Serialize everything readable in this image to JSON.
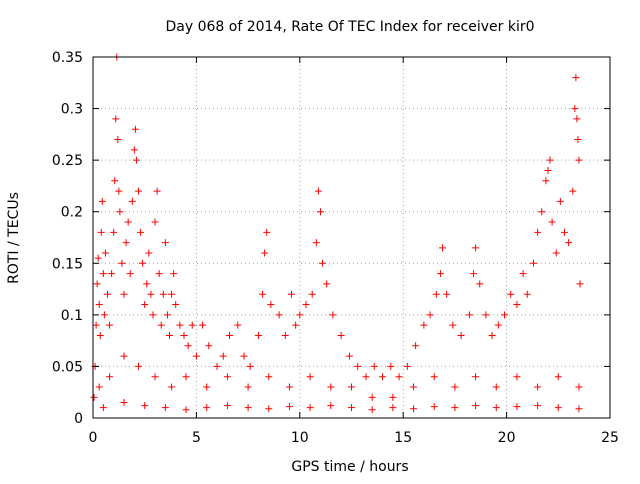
{
  "chart_data": {
    "type": "scatter",
    "title": "Day 068 of 2014, Rate Of TEC Index for receiver kir0",
    "xlabel": "GPS time / hours",
    "ylabel": "ROTI / TECUs",
    "xlim": [
      0,
      25
    ],
    "ylim": [
      0,
      0.35
    ],
    "x_ticks": [
      0,
      5,
      10,
      15,
      20,
      25
    ],
    "y_ticks": [
      0,
      0.05,
      0.1,
      0.15,
      0.2,
      0.25,
      0.3,
      0.35
    ],
    "x_tick_labels": [
      "0",
      "5",
      "10",
      "15",
      "20",
      "25"
    ],
    "y_tick_labels": [
      "0",
      "0.05",
      "0.1",
      "0.15",
      "0.2",
      "0.25",
      "0.3",
      "0.35"
    ],
    "grid": true,
    "legend": "none",
    "marker": "+",
    "color": "#ff0000",
    "series": [
      {
        "points": [
          [
            0.05,
            0.02
          ],
          [
            0.1,
            0.05
          ],
          [
            0.15,
            0.09
          ],
          [
            0.2,
            0.13
          ],
          [
            0.25,
            0.155
          ],
          [
            0.3,
            0.11
          ],
          [
            0.35,
            0.08
          ],
          [
            0.4,
            0.18
          ],
          [
            0.45,
            0.21
          ],
          [
            0.5,
            0.14
          ],
          [
            0.55,
            0.1
          ],
          [
            0.6,
            0.16
          ],
          [
            0.7,
            0.12
          ],
          [
            0.8,
            0.09
          ],
          [
            0.9,
            0.14
          ],
          [
            1.0,
            0.18
          ],
          [
            1.05,
            0.23
          ],
          [
            1.1,
            0.29
          ],
          [
            1.15,
            0.35
          ],
          [
            1.2,
            0.27
          ],
          [
            1.25,
            0.22
          ],
          [
            1.3,
            0.2
          ],
          [
            1.4,
            0.15
          ],
          [
            1.5,
            0.12
          ],
          [
            1.6,
            0.17
          ],
          [
            1.7,
            0.19
          ],
          [
            1.8,
            0.14
          ],
          [
            1.9,
            0.21
          ],
          [
            2.0,
            0.26
          ],
          [
            2.05,
            0.28
          ],
          [
            2.1,
            0.25
          ],
          [
            2.2,
            0.22
          ],
          [
            2.3,
            0.18
          ],
          [
            2.4,
            0.15
          ],
          [
            2.5,
            0.11
          ],
          [
            2.6,
            0.13
          ],
          [
            2.7,
            0.16
          ],
          [
            2.8,
            0.12
          ],
          [
            2.9,
            0.1
          ],
          [
            3.0,
            0.19
          ],
          [
            3.1,
            0.22
          ],
          [
            3.2,
            0.14
          ],
          [
            3.3,
            0.09
          ],
          [
            3.4,
            0.12
          ],
          [
            3.5,
            0.17
          ],
          [
            3.6,
            0.1
          ],
          [
            3.7,
            0.08
          ],
          [
            3.8,
            0.12
          ],
          [
            3.9,
            0.14
          ],
          [
            4.0,
            0.11
          ],
          [
            4.2,
            0.09
          ],
          [
            4.4,
            0.08
          ],
          [
            4.6,
            0.07
          ],
          [
            4.8,
            0.09
          ],
          [
            5.0,
            0.06
          ],
          [
            5.3,
            0.09
          ],
          [
            5.6,
            0.07
          ],
          [
            6.0,
            0.05
          ],
          [
            6.3,
            0.06
          ],
          [
            6.6,
            0.08
          ],
          [
            7.0,
            0.09
          ],
          [
            7.3,
            0.06
          ],
          [
            7.6,
            0.05
          ],
          [
            8.0,
            0.08
          ],
          [
            8.2,
            0.12
          ],
          [
            8.3,
            0.16
          ],
          [
            8.4,
            0.18
          ],
          [
            8.6,
            0.11
          ],
          [
            9.0,
            0.1
          ],
          [
            9.3,
            0.08
          ],
          [
            9.6,
            0.12
          ],
          [
            9.8,
            0.09
          ],
          [
            10.0,
            0.1
          ],
          [
            10.3,
            0.11
          ],
          [
            10.6,
            0.12
          ],
          [
            10.8,
            0.17
          ],
          [
            10.9,
            0.22
          ],
          [
            11.0,
            0.2
          ],
          [
            11.1,
            0.15
          ],
          [
            11.3,
            0.13
          ],
          [
            11.6,
            0.1
          ],
          [
            12.0,
            0.08
          ],
          [
            12.4,
            0.06
          ],
          [
            12.8,
            0.05
          ],
          [
            13.2,
            0.04
          ],
          [
            13.6,
            0.05
          ],
          [
            14.0,
            0.04
          ],
          [
            14.4,
            0.05
          ],
          [
            14.8,
            0.04
          ],
          [
            15.2,
            0.05
          ],
          [
            15.6,
            0.07
          ],
          [
            16.0,
            0.09
          ],
          [
            16.3,
            0.1
          ],
          [
            16.6,
            0.12
          ],
          [
            16.8,
            0.14
          ],
          [
            16.9,
            0.165
          ],
          [
            17.1,
            0.12
          ],
          [
            17.4,
            0.09
          ],
          [
            17.8,
            0.08
          ],
          [
            18.2,
            0.1
          ],
          [
            18.4,
            0.14
          ],
          [
            18.5,
            0.165
          ],
          [
            18.7,
            0.13
          ],
          [
            19.0,
            0.1
          ],
          [
            19.3,
            0.08
          ],
          [
            19.6,
            0.09
          ],
          [
            19.9,
            0.1
          ],
          [
            20.2,
            0.12
          ],
          [
            20.5,
            0.11
          ],
          [
            20.8,
            0.14
          ],
          [
            21.0,
            0.12
          ],
          [
            21.3,
            0.15
          ],
          [
            21.5,
            0.18
          ],
          [
            21.7,
            0.2
          ],
          [
            21.9,
            0.23
          ],
          [
            22.0,
            0.24
          ],
          [
            22.1,
            0.25
          ],
          [
            22.2,
            0.19
          ],
          [
            22.4,
            0.16
          ],
          [
            22.6,
            0.21
          ],
          [
            22.8,
            0.18
          ],
          [
            23.0,
            0.17
          ],
          [
            23.2,
            0.22
          ],
          [
            23.3,
            0.3
          ],
          [
            23.35,
            0.33
          ],
          [
            23.4,
            0.29
          ],
          [
            23.45,
            0.27
          ],
          [
            23.5,
            0.25
          ],
          [
            23.55,
            0.13
          ],
          [
            0.3,
            0.03
          ],
          [
            0.8,
            0.04
          ],
          [
            1.5,
            0.06
          ],
          [
            2.2,
            0.05
          ],
          [
            3.0,
            0.04
          ],
          [
            3.8,
            0.03
          ],
          [
            4.5,
            0.04
          ],
          [
            5.5,
            0.03
          ],
          [
            6.5,
            0.04
          ],
          [
            7.5,
            0.03
          ],
          [
            8.5,
            0.04
          ],
          [
            9.5,
            0.03
          ],
          [
            10.5,
            0.04
          ],
          [
            11.5,
            0.03
          ],
          [
            12.5,
            0.03
          ],
          [
            13.5,
            0.02
          ],
          [
            14.5,
            0.02
          ],
          [
            15.5,
            0.03
          ],
          [
            16.5,
            0.04
          ],
          [
            17.5,
            0.03
          ],
          [
            18.5,
            0.04
          ],
          [
            19.5,
            0.03
          ],
          [
            20.5,
            0.04
          ],
          [
            21.5,
            0.03
          ],
          [
            22.5,
            0.04
          ],
          [
            23.5,
            0.03
          ],
          [
            0.5,
            0.01
          ],
          [
            1.5,
            0.015
          ],
          [
            2.5,
            0.012
          ],
          [
            3.5,
            0.01
          ],
          [
            4.5,
            0.008
          ],
          [
            5.5,
            0.01
          ],
          [
            6.5,
            0.012
          ],
          [
            7.5,
            0.01
          ],
          [
            8.5,
            0.009
          ],
          [
            9.5,
            0.011
          ],
          [
            10.5,
            0.01
          ],
          [
            11.5,
            0.012
          ],
          [
            12.5,
            0.01
          ],
          [
            13.5,
            0.008
          ],
          [
            14.5,
            0.01
          ],
          [
            15.5,
            0.009
          ],
          [
            16.5,
            0.011
          ],
          [
            17.5,
            0.01
          ],
          [
            18.5,
            0.012
          ],
          [
            19.5,
            0.01
          ],
          [
            20.5,
            0.011
          ],
          [
            21.5,
            0.012
          ],
          [
            22.5,
            0.01
          ],
          [
            23.5,
            0.009
          ]
        ]
      }
    ]
  }
}
